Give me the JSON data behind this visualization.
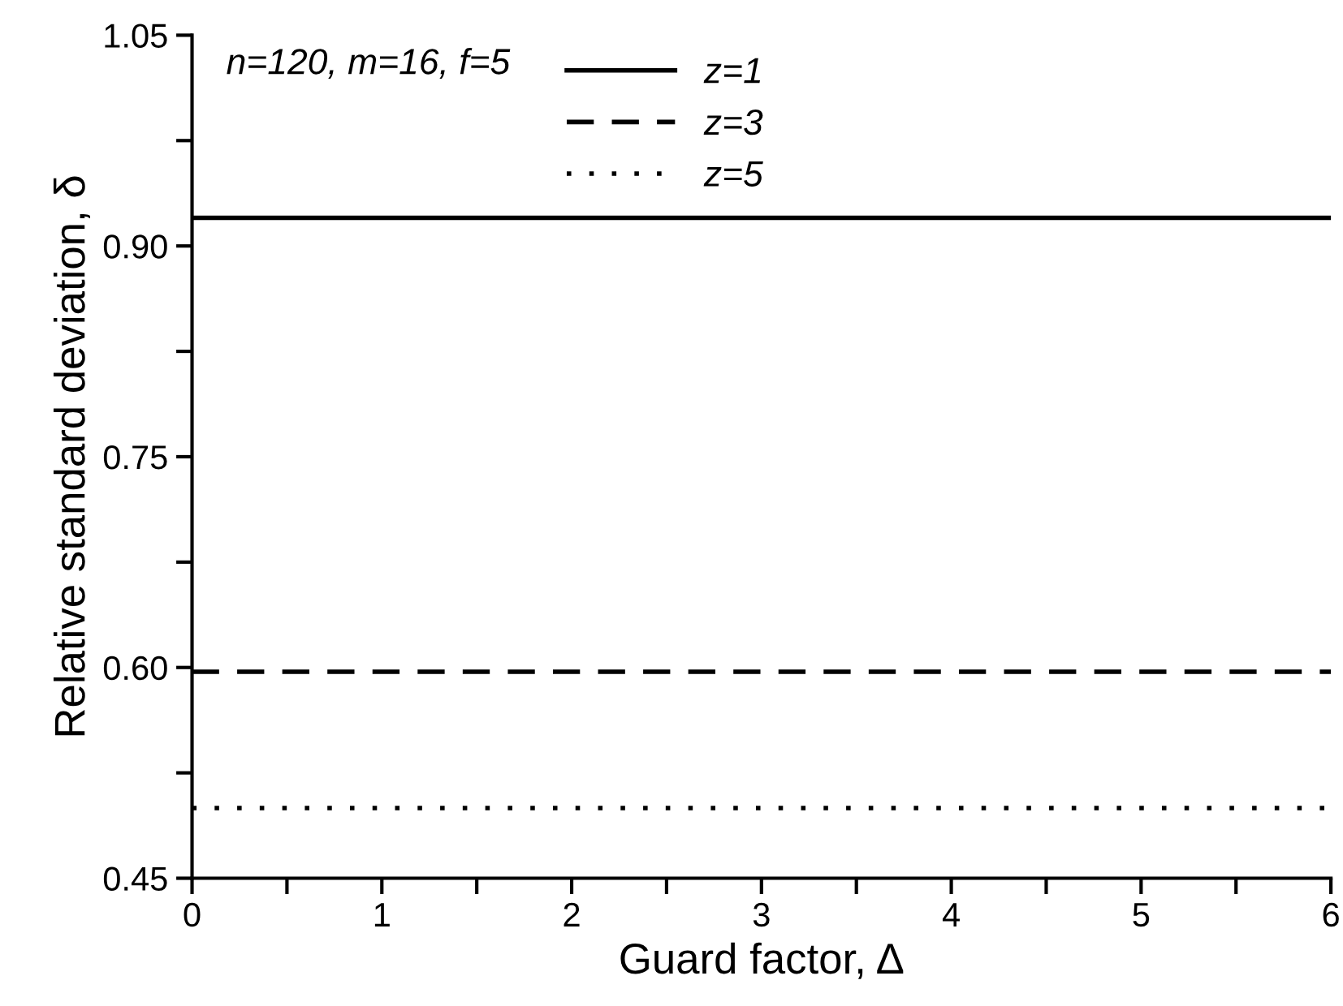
{
  "chart_data": {
    "type": "line",
    "xlabel": "Guard factor, Δ",
    "ylabel": "Relative standard deviation, δ",
    "x": [
      0,
      6
    ],
    "series": [
      {
        "name": "z=1",
        "color": "#000000",
        "line_style": "solid",
        "values": [
          0.92,
          0.92
        ]
      },
      {
        "name": "z=3",
        "color": "#000000",
        "line_style": "dashed",
        "values": [
          0.597,
          0.597
        ]
      },
      {
        "name": "z=5",
        "color": "#000000",
        "line_style": "dotted",
        "values": [
          0.5,
          0.5
        ]
      }
    ],
    "xlim": [
      0,
      6
    ],
    "ylim": [
      0.45,
      1.05
    ],
    "xticks": [
      0,
      {
        "value": 0.5,
        "label": null
      },
      1,
      {
        "value": 1.5,
        "label": null
      },
      2,
      {
        "value": 2.5,
        "label": null
      },
      3,
      {
        "value": 3.5,
        "label": null
      },
      4,
      {
        "value": 4.5,
        "label": null
      },
      5,
      {
        "value": 5.5,
        "label": null
      },
      6
    ],
    "yticks": [
      {
        "value": 0.45,
        "label": "0.45"
      },
      {
        "value": 0.525,
        "label": null
      },
      {
        "value": 0.6,
        "label": "0.60"
      },
      {
        "value": 0.675,
        "label": null
      },
      {
        "value": 0.75,
        "label": "0.75"
      },
      {
        "value": 0.825,
        "label": null
      },
      {
        "value": 0.9,
        "label": "0.90"
      },
      {
        "value": 0.975,
        "label": null
      },
      {
        "value": 1.05,
        "label": "1.05"
      }
    ],
    "legend": "top left",
    "legend_title": "n=120, m=16, f=5",
    "grid": false
  }
}
